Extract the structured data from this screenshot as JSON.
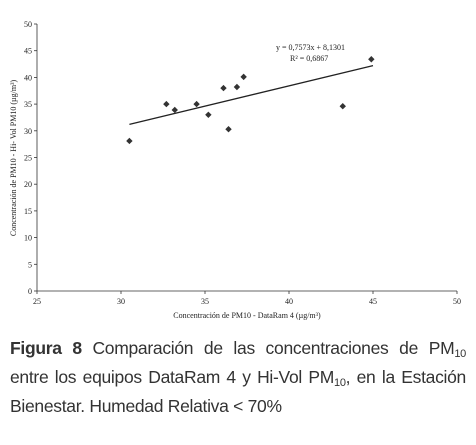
{
  "chart_data": {
    "type": "scatter",
    "xlabel": "Concentración de PM10 - DataRam 4 (µg/m³)",
    "ylabel": "Concentración de PM10 - Hi- Vol PM10 (µg/m³)",
    "x": [
      30.5,
      32.7,
      33.2,
      34.5,
      35.2,
      36.1,
      36.4,
      36.9,
      37.3,
      43.2,
      44.9
    ],
    "values": [
      28.1,
      35.0,
      33.9,
      35.0,
      33.0,
      38.0,
      30.3,
      38.2,
      40.1,
      34.6,
      43.4
    ],
    "color": "#333333",
    "trendline": {
      "x": [
        30.5,
        45
      ],
      "y": [
        31.2,
        42.2
      ],
      "equation": "y = 0,7573x + 8,1301",
      "r2": "R² = 0,6867"
    },
    "xlim": [
      25,
      50
    ],
    "xticks": [
      25,
      30,
      35,
      40,
      45,
      50
    ],
    "ylim": [
      0,
      50
    ],
    "yticks": [
      0,
      5,
      10,
      15,
      20,
      25,
      30,
      35,
      40,
      45,
      50
    ]
  },
  "caption": {
    "label": "Figura 8",
    "parts": [
      " Comparación de las concentraciones de PM",
      "10",
      " entre los equipos DataRam 4 y Hi-Vol PM",
      "10",
      ", en la Estación Bienestar. Humedad Relativa < 70%"
    ]
  }
}
